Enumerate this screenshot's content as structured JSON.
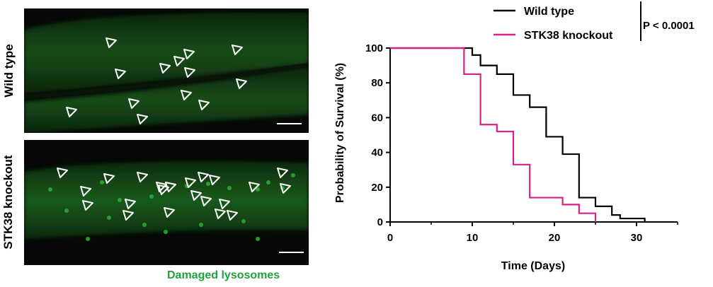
{
  "micrograph": {
    "row_labels": [
      "Wild type",
      "STK38 knockout"
    ],
    "caption": "Damaged lysosomes",
    "caption_color": "#1fa33c",
    "stain_color": "#2aa832",
    "wild_type_arrowheads": 13,
    "knockout_arrowheads": 22
  },
  "chart_data": {
    "type": "line",
    "title": "",
    "xlabel": "Time (Days)",
    "ylabel": "Probability of Survival (%)",
    "xlim": [
      0,
      35
    ],
    "ylim": [
      0,
      100
    ],
    "xticks": [
      0,
      10,
      20,
      30
    ],
    "yticks": [
      0,
      20,
      40,
      60,
      80,
      100
    ],
    "step": true,
    "legend": [
      "Wild type",
      "STK38 knockout"
    ],
    "annotation": "P < 0.0001",
    "series": [
      {
        "name": "Wild type",
        "color": "#000000",
        "x": [
          0,
          9,
          10,
          11,
          12,
          13,
          15,
          17,
          19,
          21,
          23,
          25,
          27,
          28,
          31
        ],
        "y": [
          100,
          100,
          96,
          90,
          90,
          85,
          73,
          66,
          49,
          39,
          14,
          9,
          4,
          2,
          0
        ]
      },
      {
        "name": "STK38 knockout",
        "color": "#d6218a",
        "x": [
          0,
          9,
          11,
          13,
          15,
          17,
          21,
          23,
          25
        ],
        "y": [
          100,
          85,
          56,
          52,
          33,
          14,
          10,
          5,
          0
        ]
      }
    ]
  }
}
